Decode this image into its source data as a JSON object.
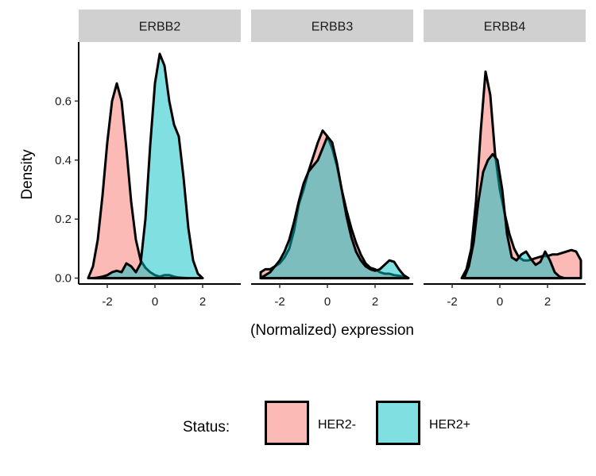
{
  "chart_data": {
    "type": "area",
    "xlabel": "(Normalized) expression",
    "ylabel": "Density",
    "xlim": [
      -3.2,
      3.6
    ],
    "ylim": [
      -0.02,
      0.8
    ],
    "x_ticks": [
      -2,
      0,
      2
    ],
    "y_ticks": [
      0.0,
      0.2,
      0.4,
      0.6
    ],
    "y_tick_labels": [
      "0.0",
      "0.2",
      "0.4",
      "0.6"
    ],
    "grid": false,
    "legend": {
      "title": "Status:",
      "position": "bottom",
      "entries": [
        {
          "label": "HER2-",
          "color": "#f8766d"
        },
        {
          "label": "HER2+",
          "color": "#00bfc4"
        }
      ]
    },
    "colors": {
      "HER2-": "#f8766d",
      "HER2+": "#00bfc4",
      "strip_bg": "#d0d0d0"
    },
    "panels": [
      {
        "name": "ERBB2",
        "series": [
          {
            "name": "HER2-",
            "x": [
              -2.8,
              -2.6,
              -2.4,
              -2.2,
              -2.0,
              -1.8,
              -1.6,
              -1.4,
              -1.2,
              -1.0,
              -0.8,
              -0.6,
              -0.4,
              -0.2,
              0.0,
              0.2,
              0.4,
              0.6,
              0.8,
              1.0,
              1.2,
              1.4
            ],
            "y": [
              0.0,
              0.04,
              0.13,
              0.28,
              0.46,
              0.6,
              0.66,
              0.6,
              0.44,
              0.26,
              0.13,
              0.06,
              0.035,
              0.02,
              0.01,
              0.005,
              0.01,
              0.01,
              0.005,
              0.002,
              0.001,
              0.0
            ]
          },
          {
            "name": "HER2+",
            "x": [
              -2.6,
              -2.4,
              -2.2,
              -2.0,
              -1.8,
              -1.6,
              -1.4,
              -1.2,
              -1.0,
              -0.8,
              -0.6,
              -0.4,
              -0.2,
              0.0,
              0.2,
              0.4,
              0.6,
              0.8,
              1.0,
              1.2,
              1.4,
              1.6,
              1.8,
              2.0
            ],
            "y": [
              0.0,
              0.002,
              0.005,
              0.01,
              0.02,
              0.025,
              0.02,
              0.05,
              0.04,
              0.02,
              0.05,
              0.2,
              0.45,
              0.66,
              0.76,
              0.72,
              0.6,
              0.52,
              0.48,
              0.34,
              0.17,
              0.06,
              0.015,
              0.0
            ]
          }
        ]
      },
      {
        "name": "ERBB3",
        "series": [
          {
            "name": "HER2-",
            "x": [
              -2.8,
              -2.6,
              -2.4,
              -2.2,
              -2.0,
              -1.8,
              -1.6,
              -1.4,
              -1.2,
              -1.0,
              -0.8,
              -0.6,
              -0.4,
              -0.2,
              0.0,
              0.2,
              0.4,
              0.6,
              0.8,
              1.0,
              1.2,
              1.4,
              1.6,
              1.8,
              2.0,
              2.2,
              2.4,
              2.6,
              2.8,
              3.0,
              3.2,
              3.4
            ],
            "y": [
              0.02,
              0.03,
              0.03,
              0.04,
              0.05,
              0.07,
              0.1,
              0.16,
              0.25,
              0.3,
              0.36,
              0.41,
              0.46,
              0.5,
              0.48,
              0.44,
              0.38,
              0.3,
              0.23,
              0.17,
              0.12,
              0.08,
              0.05,
              0.035,
              0.03,
              0.02,
              0.015,
              0.015,
              0.01,
              0.008,
              0.005,
              0.0
            ]
          },
          {
            "name": "HER2+",
            "x": [
              -2.8,
              -2.6,
              -2.4,
              -2.2,
              -2.0,
              -1.8,
              -1.6,
              -1.4,
              -1.2,
              -1.0,
              -0.8,
              -0.6,
              -0.4,
              -0.2,
              0.0,
              0.2,
              0.4,
              0.6,
              0.8,
              1.0,
              1.2,
              1.4,
              1.6,
              1.8,
              2.0,
              2.2,
              2.4,
              2.6,
              2.8,
              3.0,
              3.2,
              3.4
            ],
            "y": [
              0.0,
              0.01,
              0.02,
              0.04,
              0.06,
              0.09,
              0.13,
              0.19,
              0.26,
              0.32,
              0.36,
              0.38,
              0.4,
              0.44,
              0.48,
              0.46,
              0.39,
              0.3,
              0.21,
              0.14,
              0.09,
              0.06,
              0.04,
              0.03,
              0.025,
              0.03,
              0.045,
              0.06,
              0.055,
              0.03,
              0.01,
              0.0
            ]
          }
        ]
      },
      {
        "name": "ERBB4",
        "series": [
          {
            "name": "HER2-",
            "x": [
              -1.6,
              -1.4,
              -1.2,
              -1.0,
              -0.8,
              -0.6,
              -0.4,
              -0.2,
              0.0,
              0.2,
              0.4,
              0.6,
              0.8,
              1.0,
              1.2,
              1.4,
              1.6,
              1.8,
              2.0,
              2.2,
              2.4,
              2.6,
              2.8,
              3.0,
              3.2,
              3.4
            ],
            "y": [
              0.0,
              0.03,
              0.1,
              0.26,
              0.5,
              0.7,
              0.62,
              0.42,
              0.3,
              0.22,
              0.15,
              0.1,
              0.07,
              0.06,
              0.06,
              0.065,
              0.07,
              0.075,
              0.075,
              0.08,
              0.08,
              0.085,
              0.09,
              0.095,
              0.09,
              0.06
            ]
          },
          {
            "name": "HER2+",
            "x": [
              -1.5,
              -1.3,
              -1.1,
              -0.9,
              -0.7,
              -0.5,
              -0.3,
              -0.1,
              0.1,
              0.3,
              0.5,
              0.7,
              0.9,
              1.1,
              1.3,
              1.5,
              1.7,
              1.9,
              2.1,
              2.3,
              2.5,
              2.7
            ],
            "y": [
              0.0,
              0.04,
              0.12,
              0.26,
              0.36,
              0.4,
              0.42,
              0.4,
              0.3,
              0.15,
              0.07,
              0.06,
              0.08,
              0.09,
              0.065,
              0.045,
              0.055,
              0.09,
              0.06,
              0.02,
              0.005,
              0.0
            ]
          }
        ]
      }
    ]
  }
}
